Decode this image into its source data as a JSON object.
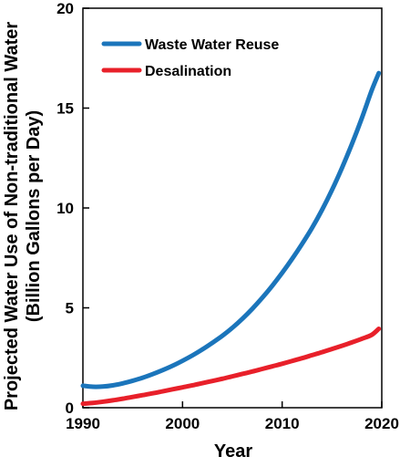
{
  "chart_data": {
    "type": "line",
    "title": "",
    "xlabel": "Year",
    "ylabel_lines": [
      "Projected Water Use of Non-traditional Water",
      "(Billion Gallons per Day)"
    ],
    "xlim": [
      1990,
      2020
    ],
    "ylim": [
      0,
      20
    ],
    "xticks": [
      1990,
      2000,
      2010,
      2020
    ],
    "yticks": [
      0,
      5,
      10,
      15,
      20
    ],
    "grid": false,
    "legend_position": "top-left",
    "series": [
      {
        "name": "Waste Water Reuse",
        "color": "#1b75bb",
        "x": [
          1990,
          1991,
          1992,
          1993,
          1994,
          1995,
          1996,
          1997,
          1998,
          1999,
          2000,
          2001,
          2002,
          2003,
          2004,
          2005,
          2006,
          2007,
          2008,
          2009,
          2010,
          2011,
          2012,
          2013,
          2014,
          2015,
          2016,
          2017,
          2018,
          2019,
          2019.7
        ],
        "values": [
          1.1,
          1.05,
          1.06,
          1.12,
          1.22,
          1.35,
          1.5,
          1.68,
          1.88,
          2.1,
          2.35,
          2.62,
          2.92,
          3.25,
          3.6,
          4.0,
          4.45,
          4.95,
          5.5,
          6.1,
          6.75,
          7.45,
          8.2,
          9.0,
          9.9,
          10.9,
          12.0,
          13.2,
          14.5,
          15.9,
          16.75
        ]
      },
      {
        "name": "Desalination",
        "color": "#e8202a",
        "x": [
          1990,
          1991,
          1992,
          1993,
          1994,
          1995,
          1996,
          1997,
          1998,
          1999,
          2000,
          2001,
          2002,
          2003,
          2004,
          2005,
          2006,
          2007,
          2008,
          2009,
          2010,
          2011,
          2012,
          2013,
          2014,
          2015,
          2016,
          2017,
          2018,
          2019,
          2019.7
        ],
        "values": [
          0.2,
          0.24,
          0.3,
          0.37,
          0.45,
          0.54,
          0.63,
          0.72,
          0.82,
          0.92,
          1.02,
          1.12,
          1.23,
          1.34,
          1.45,
          1.57,
          1.69,
          1.81,
          1.94,
          2.07,
          2.2,
          2.34,
          2.48,
          2.63,
          2.78,
          2.94,
          3.1,
          3.27,
          3.45,
          3.65,
          3.95
        ]
      }
    ]
  }
}
